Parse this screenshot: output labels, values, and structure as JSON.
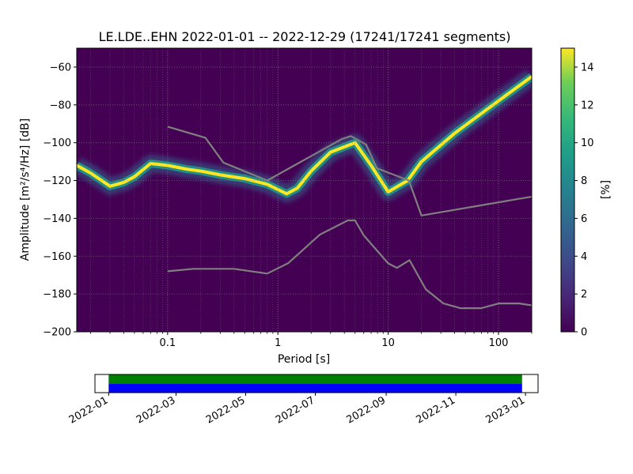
{
  "chart_data": [
    {
      "type": "heatmap",
      "title": "LE.LDE..EHN   2022-01-01 -- 2022-12-29  (17241/17241 segments)",
      "xlabel": "Period [s]",
      "ylabel": "Amplitude [m²/s⁴/Hz] [dB]",
      "x_scale": "log",
      "xlim": [
        0.015,
        200
      ],
      "ylim": [
        -200,
        -50
      ],
      "x_ticks": [
        0.1,
        1,
        10,
        100
      ],
      "x_tick_labels": [
        "0.1",
        "1",
        "10",
        "100"
      ],
      "y_ticks": [
        -200,
        -180,
        -160,
        -140,
        -120,
        -100,
        -80,
        -60
      ],
      "y_tick_labels": [
        "−200",
        "−180",
        "−160",
        "−140",
        "−120",
        "−100",
        "−80",
        "−60"
      ],
      "grid": true,
      "colormap": "viridis",
      "colorbar": {
        "label": "[%]",
        "range": [
          0,
          15
        ],
        "ticks": [
          0,
          2,
          4,
          6,
          8,
          10,
          12,
          14
        ],
        "tick_labels": [
          "0",
          "2",
          "4",
          "6",
          "8",
          "10",
          "12",
          "14"
        ]
      },
      "series": [
        {
          "role": "mode_of_distribution",
          "x": [
            0.015,
            0.02,
            0.03,
            0.04,
            0.05,
            0.07,
            0.1,
            0.15,
            0.2,
            0.3,
            0.5,
            0.8,
            1.2,
            1.5,
            2,
            3,
            5,
            7,
            10,
            15,
            20,
            40,
            80,
            200
          ],
          "y": [
            -112,
            -116,
            -123,
            -121,
            -118,
            -111,
            -112,
            -114,
            -115,
            -117,
            -119,
            -122,
            -127,
            -124,
            -115,
            -105,
            -100,
            -112,
            -126,
            -120,
            -110,
            -95,
            -82,
            -65
          ]
        },
        {
          "role": "new_high_noise_model",
          "x": [
            0.1,
            0.22,
            0.32,
            0.8,
            3.8,
            4.6,
            6.3,
            7.9,
            15.4,
            20,
            200
          ],
          "y": [
            -91.5,
            -97.4,
            -110.5,
            -120,
            -98,
            -96.5,
            -101,
            -113.5,
            -120,
            -138.5,
            -128.5
          ]
        },
        {
          "role": "new_low_noise_model",
          "x": [
            0.1,
            0.17,
            0.4,
            0.8,
            1.24,
            2.4,
            4.3,
            5,
            6,
            10,
            12,
            15.6,
            21.9,
            31.6,
            45,
            70,
            101,
            154,
            200
          ],
          "y": [
            -168,
            -166.7,
            -166.7,
            -169.2,
            -163.7,
            -148.6,
            -141.1,
            -141.1,
            -149,
            -163.8,
            -166.2,
            -162.1,
            -177.5,
            -185,
            -187.5,
            -187.5,
            -185,
            -185,
            -186
          ]
        }
      ]
    },
    {
      "type": "timeline",
      "x_tick_labels": [
        "2022-01",
        "2022-03",
        "2022-05",
        "2022-07",
        "2022-09",
        "2022-11",
        "2023-01"
      ],
      "x_ticks": [
        "2022-01-01",
        "2022-03-01",
        "2022-05-01",
        "2022-07-01",
        "2022-09-01",
        "2022-11-01",
        "2023-01-01"
      ],
      "xlim": [
        "2021-12-20",
        "2023-01-12"
      ],
      "coverage": [
        {
          "start": "2022-01-01",
          "end": "2022-12-29",
          "color": "#0000ff"
        },
        {
          "start": "2022-01-01",
          "end": "2022-12-29",
          "color": "#008000"
        }
      ]
    }
  ]
}
